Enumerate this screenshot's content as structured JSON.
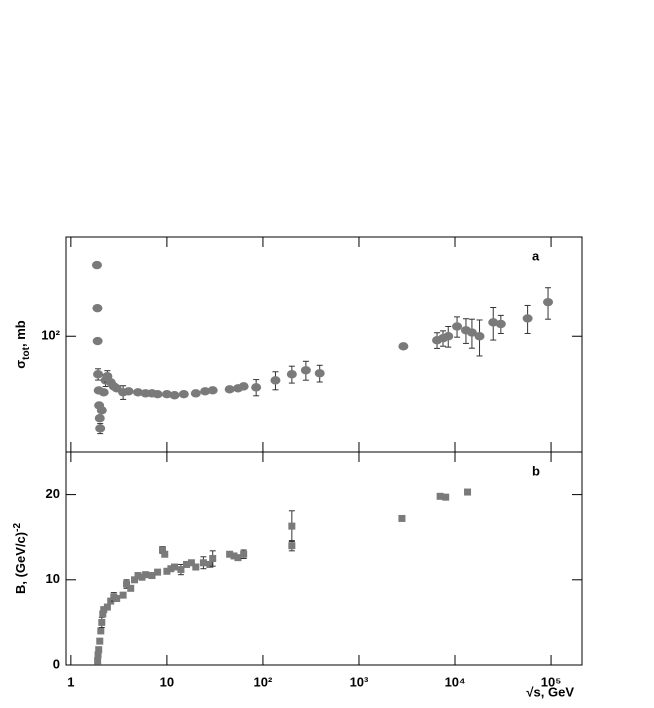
{
  "chart_data": [
    {
      "type": "scatter",
      "panel_label": "a",
      "ylabel": [
        "σ",
        "tot",
        ", mb"
      ],
      "marker": "circle",
      "color": "#7a7a7a",
      "log_x": true,
      "log_y": true,
      "xlim": [
        0.89,
        210000
      ],
      "ylim": [
        29,
        289
      ],
      "yticks": [
        {
          "value": 100,
          "label": "10²"
        }
      ],
      "x": [
        1.87,
        1.89,
        1.9,
        1.92,
        1.95,
        1.97,
        2.0,
        2.02,
        2.1,
        2.2,
        2.3,
        2.4,
        2.6,
        2.8,
        3.0,
        3.5,
        4,
        5,
        6,
        7,
        8,
        10,
        12,
        15,
        20,
        25,
        30,
        45,
        55,
        63,
        85,
        135,
        200,
        280,
        390,
        2900,
        6500,
        7500,
        8500,
        10500,
        13000,
        15000,
        18000,
        25000,
        30000,
        57000,
        93000
      ],
      "values": [
        214,
        135,
        95,
        66.6,
        56,
        47.7,
        41.6,
        37.3,
        45.3,
        54.9,
        62.4,
        65.2,
        61.1,
        58.5,
        57.3,
        54.9,
        55.5,
        54.9,
        54.3,
        54.3,
        53.8,
        53.8,
        53.2,
        53.8,
        54.3,
        55.5,
        56.1,
        56.7,
        57.3,
        58.5,
        57.9,
        62.4,
        66.6,
        69.5,
        67.3,
        89.8,
        95.8,
        97.9,
        100,
        111,
        106.6,
        104,
        100,
        116,
        114,
        121,
        144
      ],
      "errors": [
        null,
        null,
        null,
        4,
        null,
        null,
        null,
        2,
        null,
        null,
        4,
        4,
        null,
        null,
        null,
        4,
        null,
        null,
        null,
        null,
        null,
        null,
        null,
        null,
        null,
        null,
        null,
        null,
        null,
        null,
        5,
        6,
        6,
        7,
        6,
        null,
        8,
        8,
        11,
        12,
        14,
        16,
        19,
        20,
        11,
        18,
        24
      ]
    },
    {
      "type": "scatter",
      "panel_label": "b",
      "ylabel": [
        "B, (GeV/c)",
        "-2"
      ],
      "xlabel": "√s, GeV",
      "marker": "square",
      "color": "#7a7a7a",
      "log_x": true,
      "log_y": false,
      "xlim": [
        0.89,
        210000
      ],
      "ylim": [
        0,
        25
      ],
      "yticks": [
        0,
        10,
        20
      ],
      "xticks": [
        1,
        10,
        {
          "value": 100,
          "label": "10²"
        },
        {
          "value": 1000,
          "label": "10³"
        },
        {
          "value": 10000,
          "label": "10⁴"
        },
        {
          "value": 100000,
          "label": "10⁵"
        }
      ],
      "x": [
        1.9,
        1.92,
        1.95,
        2.0,
        2.05,
        2.1,
        2.15,
        2.2,
        2.4,
        2.6,
        2.8,
        3.0,
        3.5,
        3.8,
        4.2,
        4.6,
        5,
        5.5,
        6,
        7,
        8,
        9,
        9.5,
        10,
        11,
        12,
        14,
        16,
        18,
        20,
        24,
        28,
        30,
        45,
        50,
        55,
        63,
        200,
        200,
        2800,
        7000,
        8000,
        13500
      ],
      "values": [
        0.5,
        1.2,
        1.8,
        2.8,
        4,
        5,
        6,
        6.5,
        6.8,
        7.5,
        8,
        7.8,
        8.2,
        9.5,
        9,
        10,
        10.5,
        10.3,
        10.6,
        10.5,
        10.9,
        13.5,
        13,
        11,
        11.3,
        11.5,
        11.2,
        11.8,
        12,
        11.5,
        12,
        11.8,
        12.5,
        13,
        12.8,
        12.6,
        13,
        16.3,
        14,
        17.2,
        19.8,
        19.7,
        20.3
      ],
      "errors": [
        null,
        null,
        null,
        null,
        null,
        0.6,
        null,
        null,
        null,
        null,
        0.5,
        null,
        null,
        0.5,
        null,
        null,
        null,
        null,
        null,
        null,
        null,
        0.4,
        null,
        null,
        null,
        null,
        0.6,
        null,
        null,
        null,
        0.7,
        null,
        0.9,
        null,
        null,
        null,
        0.5,
        1.8,
        0.6,
        null,
        null,
        null,
        null
      ]
    }
  ]
}
